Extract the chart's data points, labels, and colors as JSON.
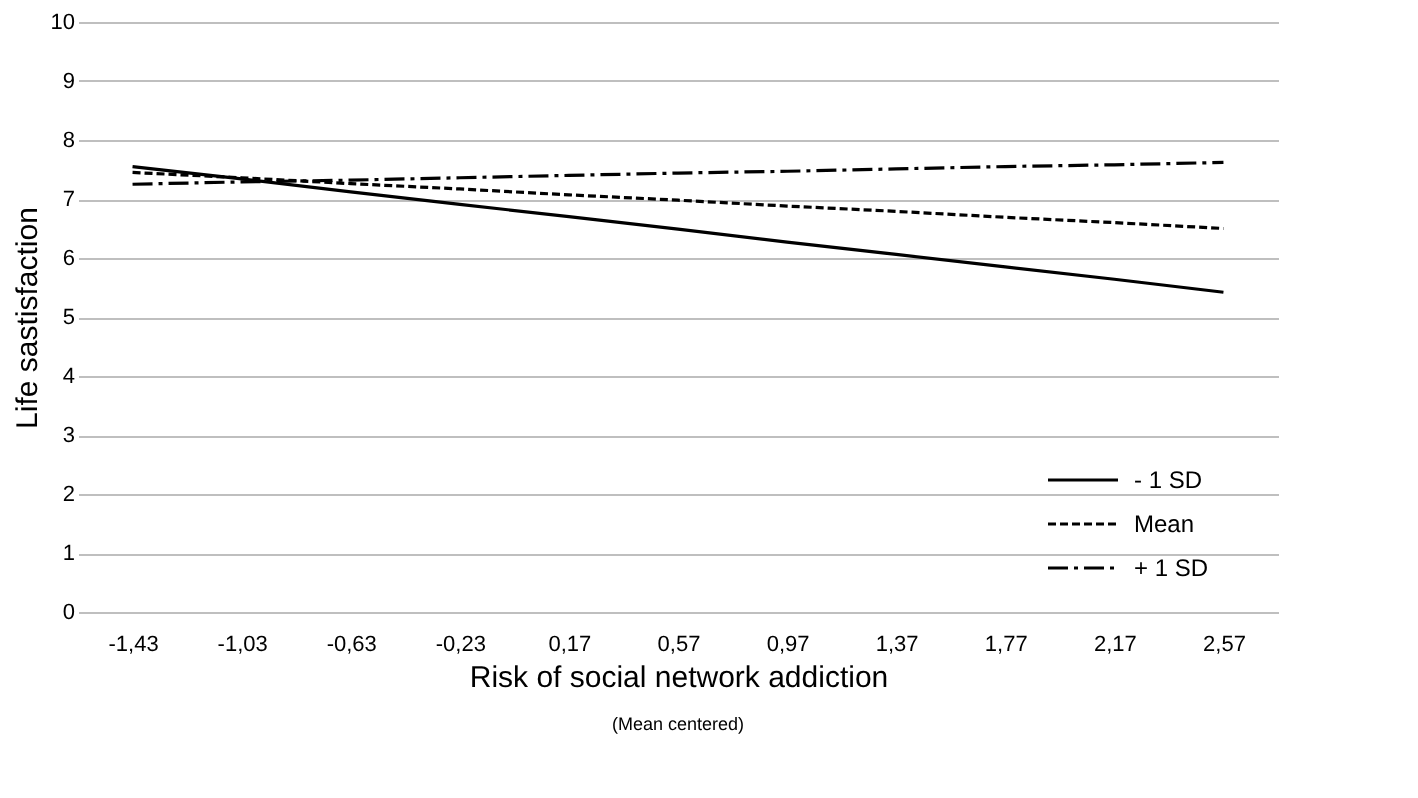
{
  "chart_data": {
    "type": "line",
    "xlabel": "Risk of social network addiction",
    "ylabel": "Life sastisfaction",
    "annotations": [
      "(Mean centered)"
    ],
    "categories": [
      "-1,43",
      "-1,03",
      "-0,63",
      "-0,23",
      "0,17",
      "0,57",
      "0,97",
      "1,37",
      "1,77",
      "2,17",
      "2,57"
    ],
    "series": [
      {
        "name": "- 1 SD",
        "color": "#000000",
        "line_style": "solid",
        "values": [
          7.55,
          7.34,
          7.12,
          6.91,
          6.7,
          6.49,
          6.27,
          6.06,
          5.85,
          5.64,
          5.42
        ]
      },
      {
        "name": "Mean",
        "color": "#000000",
        "line_style": "dashed",
        "values": [
          7.45,
          7.36,
          7.26,
          7.17,
          7.07,
          6.98,
          6.88,
          6.79,
          6.69,
          6.6,
          6.5
        ]
      },
      {
        "name": "+ 1 SD",
        "color": "#000000",
        "line_style": "dashdot",
        "values": [
          7.25,
          7.29,
          7.32,
          7.36,
          7.4,
          7.44,
          7.47,
          7.51,
          7.55,
          7.58,
          7.62
        ]
      }
    ],
    "ylim": [
      0,
      10
    ],
    "yticks": [
      0,
      1,
      2,
      3,
      4,
      5,
      6,
      7,
      8,
      9,
      10
    ],
    "grid": "y",
    "legend": "bottom right"
  }
}
